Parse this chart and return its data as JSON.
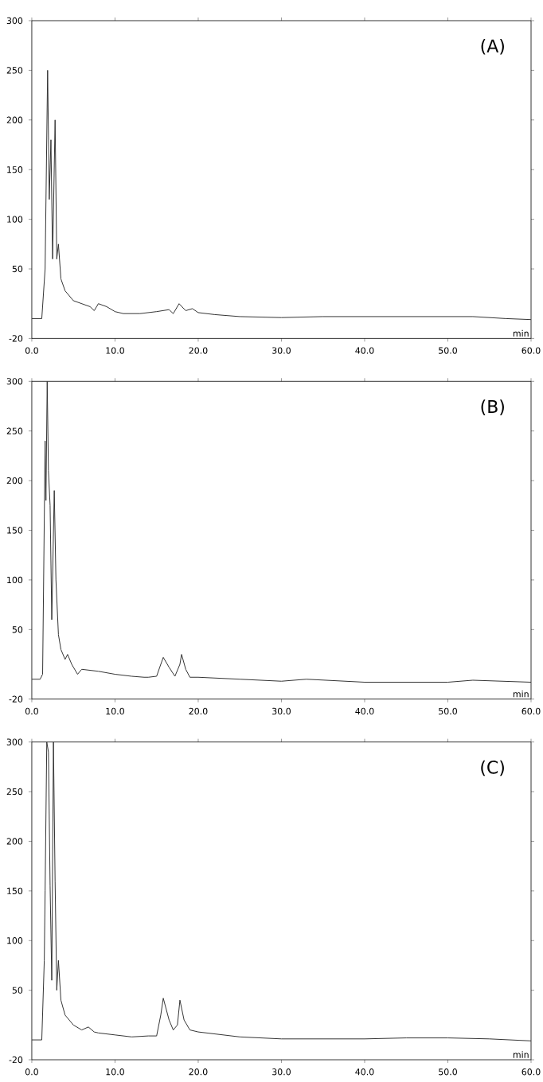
{
  "chart_data": [
    {
      "type": "line",
      "title": "(A)",
      "xlabel": "min",
      "color": "#333333",
      "grid": false,
      "marker": "none",
      "line_style": "solid",
      "x": [
        0,
        1.2,
        1.6,
        1.9,
        2.1,
        2.3,
        2.5,
        2.8,
        3.0,
        3.2,
        3.5,
        4,
        5,
        6,
        7,
        7.5,
        8,
        9,
        10,
        11,
        13,
        15,
        16.5,
        17,
        17.7,
        18.5,
        19.3,
        20,
        22,
        25,
        30,
        35,
        40,
        45,
        50,
        53,
        57,
        60
      ],
      "values": [
        0,
        0,
        50,
        250,
        120,
        180,
        60,
        200,
        60,
        75,
        40,
        28,
        18,
        15,
        12,
        8,
        15,
        12,
        7,
        5,
        5,
        7,
        9,
        5,
        15,
        8,
        10,
        6,
        4,
        2,
        1,
        2,
        2,
        2,
        2,
        2,
        0,
        -1
      ],
      "xlim": [
        0,
        60
      ],
      "ylim": [
        -20,
        300
      ],
      "xticks": [
        {
          "value": 0,
          "label": "0.0"
        },
        {
          "value": 10,
          "label": "10.0"
        },
        {
          "value": 20,
          "label": "20.0"
        },
        {
          "value": 30,
          "label": "30.0"
        },
        {
          "value": 40,
          "label": "40.0"
        },
        {
          "value": 50,
          "label": "50.0"
        },
        {
          "value": 60,
          "label": "60.0"
        }
      ],
      "yticks": [
        -20,
        50,
        100,
        150,
        200,
        250,
        300
      ]
    },
    {
      "type": "line",
      "title": "(B)",
      "xlabel": "min",
      "color": "#333333",
      "grid": false,
      "marker": "none",
      "line_style": "solid",
      "x": [
        0,
        1,
        1.3,
        1.6,
        1.7,
        1.85,
        2.0,
        2.2,
        2.4,
        2.7,
        2.9,
        3.2,
        3.5,
        4,
        4.3,
        4.8,
        5.5,
        6,
        8,
        10,
        12,
        13.5,
        14,
        15,
        15.5,
        15.8,
        16.5,
        17.2,
        17.8,
        18,
        18.5,
        19,
        20,
        25,
        30,
        33,
        40,
        50,
        53,
        60
      ],
      "values": [
        0,
        0,
        5,
        240,
        180,
        300,
        210,
        175,
        60,
        190,
        100,
        45,
        30,
        20,
        25,
        15,
        5,
        10,
        8,
        5,
        3,
        2,
        2,
        3,
        15,
        22,
        12,
        3,
        15,
        25,
        10,
        2,
        2,
        0,
        -2,
        0,
        -3,
        -3,
        -1,
        -3
      ],
      "xlim": [
        0,
        60
      ],
      "ylim": [
        -20,
        300
      ],
      "xticks": [
        {
          "value": 0,
          "label": "0.0"
        },
        {
          "value": 10,
          "label": "10.0"
        },
        {
          "value": 20,
          "label": "20.0"
        },
        {
          "value": 30,
          "label": "30.0"
        },
        {
          "value": 40,
          "label": "40.0"
        },
        {
          "value": 50,
          "label": "50.0"
        },
        {
          "value": 60,
          "label": "60.0"
        }
      ],
      "yticks": [
        -20,
        50,
        100,
        150,
        200,
        250,
        300
      ]
    },
    {
      "type": "line",
      "title": "(C)",
      "xlabel": "min",
      "color": "#333333",
      "grid": false,
      "marker": "none",
      "line_style": "solid",
      "x": [
        0,
        1.2,
        1.5,
        1.6,
        1.8,
        2.0,
        2.2,
        2.4,
        2.6,
        2.8,
        3.0,
        3.2,
        3.5,
        4,
        5,
        6,
        6.8,
        7.5,
        8,
        10,
        12,
        14,
        15,
        15.5,
        15.8,
        16.5,
        17,
        17.5,
        17.8,
        18.3,
        19,
        20,
        25,
        30,
        40,
        45,
        50,
        55,
        60
      ],
      "values": [
        0,
        0,
        80,
        150,
        300,
        290,
        155,
        60,
        300,
        160,
        50,
        80,
        40,
        25,
        15,
        10,
        13,
        8,
        7,
        5,
        3,
        4,
        4,
        25,
        42,
        20,
        10,
        15,
        40,
        20,
        10,
        8,
        3,
        1,
        1,
        2,
        2,
        1,
        -1
      ],
      "xlim": [
        0,
        60
      ],
      "ylim": [
        -20,
        300
      ],
      "xticks": [
        {
          "value": 0,
          "label": "0.0"
        },
        {
          "value": 10,
          "label": "10.0"
        },
        {
          "value": 20,
          "label": "20.0"
        },
        {
          "value": 30,
          "label": "30.0"
        },
        {
          "value": 40,
          "label": "40.0"
        },
        {
          "value": 50,
          "label": "50.0"
        },
        {
          "value": 60,
          "label": "60.0"
        }
      ],
      "yticks": [
        -20,
        50,
        100,
        150,
        200,
        250,
        300
      ]
    }
  ]
}
